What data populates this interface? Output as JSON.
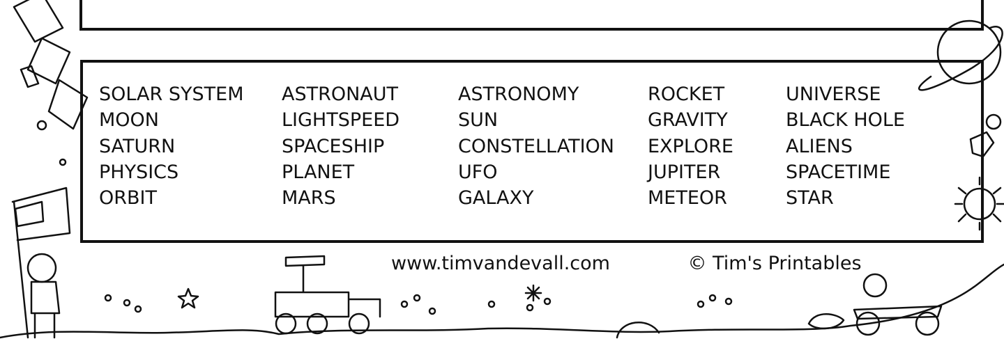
{
  "word_list": {
    "columns": [
      [
        "SOLAR SYSTEM",
        "MOON",
        "SATURN",
        "PHYSICS",
        "ORBIT"
      ],
      [
        "ASTRONAUT",
        "LIGHTSPEED",
        "SPACESHIP",
        "PLANET",
        "MARS"
      ],
      [
        "ASTRONOMY",
        "SUN",
        "CONSTELLATION",
        "UFO",
        "GALAXY"
      ],
      [
        "ROCKET",
        "GRAVITY",
        "EXPLORE",
        "JUPITER",
        "METEOR"
      ],
      [
        "UNIVERSE",
        "BLACK HOLE",
        "ALIENS",
        "SPACETIME",
        "STAR"
      ]
    ]
  },
  "footer": {
    "website": "www.timvandevall.com",
    "copyright": "© Tim's Printables"
  }
}
